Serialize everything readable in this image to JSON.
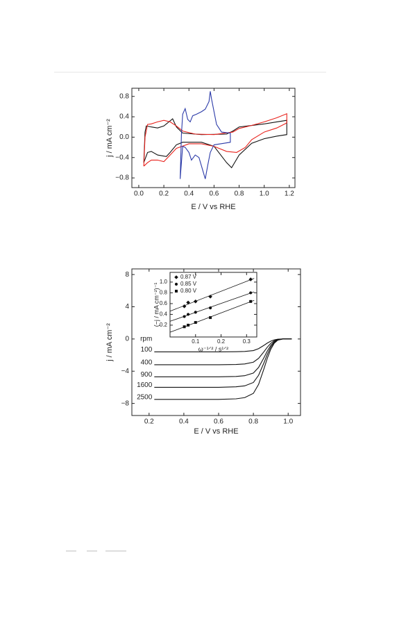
{
  "chart_data": [
    {
      "type": "line",
      "xlabel": "E / V  vs  RHE",
      "ylabel": "j / mA cm⁻²",
      "xlim": [
        -0.055,
        1.245
      ],
      "ylim": [
        -0.99,
        0.96
      ],
      "xticks": [
        {
          "value": 0,
          "label": "0.0"
        },
        {
          "value": 0.2,
          "label": "0.2"
        },
        {
          "value": 0.4,
          "label": "0.4"
        },
        {
          "value": 0.6,
          "label": "0.6"
        },
        {
          "value": 0.8,
          "label": "0.8"
        },
        {
          "value": 1.0,
          "label": "1.0"
        },
        {
          "value": 1.2,
          "label": "1.2"
        }
      ],
      "yticks": [
        {
          "value": -0.8,
          "label": "−0.8"
        },
        {
          "value": -0.4,
          "label": "−0.4"
        },
        {
          "value": 0,
          "label": "0.0"
        },
        {
          "value": 0.4,
          "label": "0.4"
        },
        {
          "value": 0.8,
          "label": "0.8"
        }
      ],
      "series": [
        {
          "color": "#111111",
          "x": [
            0.04,
            0.05,
            0.06,
            0.1,
            0.15,
            0.2,
            0.25,
            0.27,
            0.3,
            0.35,
            0.5,
            0.7,
            0.75,
            0.8,
            0.9,
            1.0,
            1.1,
            1.18,
            1.18,
            1.1,
            1.0,
            0.9,
            0.8,
            0.74,
            0.7,
            0.6,
            0.5,
            0.35,
            0.3,
            0.25,
            0.22,
            0.15,
            0.1,
            0.07,
            0.04
          ],
          "values": [
            -0.5,
            0.1,
            0.22,
            0.2,
            0.18,
            0.22,
            0.32,
            0.36,
            0.2,
            0.08,
            0.05,
            0.06,
            0.12,
            0.2,
            0.23,
            0.26,
            0.3,
            0.33,
            0.05,
            0.02,
            -0.03,
            -0.12,
            -0.35,
            -0.6,
            -0.5,
            -0.18,
            -0.1,
            -0.1,
            -0.15,
            -0.3,
            -0.38,
            -0.35,
            -0.28,
            -0.3,
            -0.5
          ]
        },
        {
          "color": "#e8211b",
          "x": [
            0.04,
            0.05,
            0.07,
            0.1,
            0.15,
            0.2,
            0.25,
            0.3,
            0.35,
            0.45,
            0.6,
            0.75,
            0.8,
            0.9,
            1.0,
            1.1,
            1.18,
            1.18,
            1.1,
            1.0,
            0.9,
            0.85,
            0.78,
            0.7,
            0.6,
            0.5,
            0.4,
            0.3,
            0.25,
            0.2,
            0.15,
            0.1,
            0.07,
            0.04
          ],
          "values": [
            -0.57,
            0.0,
            0.25,
            0.26,
            0.3,
            0.33,
            0.3,
            0.22,
            0.12,
            0.06,
            0.05,
            0.1,
            0.17,
            0.23,
            0.3,
            0.38,
            0.46,
            0.28,
            0.18,
            0.1,
            -0.05,
            -0.2,
            -0.3,
            -0.28,
            -0.18,
            -0.13,
            -0.13,
            -0.22,
            -0.35,
            -0.48,
            -0.45,
            -0.45,
            -0.5,
            -0.57
          ]
        },
        {
          "color": "#2b3aa8",
          "x": [
            0.33,
            0.34,
            0.35,
            0.37,
            0.39,
            0.41,
            0.43,
            0.46,
            0.5,
            0.53,
            0.56,
            0.57,
            0.58,
            0.6,
            0.62,
            0.66,
            0.73,
            0.73,
            0.68,
            0.6,
            0.57,
            0.55,
            0.53,
            0.51,
            0.48,
            0.45,
            0.42,
            0.4,
            0.37,
            0.35,
            0.33
          ],
          "values": [
            -0.82,
            0.05,
            0.45,
            0.56,
            0.35,
            0.3,
            0.42,
            0.45,
            0.5,
            0.55,
            0.7,
            0.9,
            0.75,
            0.5,
            0.25,
            0.1,
            0.08,
            -0.1,
            -0.12,
            -0.15,
            -0.3,
            -0.55,
            -0.82,
            -0.65,
            -0.4,
            -0.35,
            -0.45,
            -0.3,
            -0.2,
            -0.18,
            -0.82
          ]
        }
      ]
    },
    {
      "type": "line",
      "xlabel": "E / V  vs  RHE",
      "ylabel": "j / mA cm⁻²",
      "annotation": "rpm",
      "xlim": [
        0.101,
        1.071
      ],
      "ylim": [
        -9.5,
        8.7
      ],
      "xticks": [
        {
          "value": 0.2,
          "label": "0.2"
        },
        {
          "value": 0.4,
          "label": "0.4"
        },
        {
          "value": 0.6,
          "label": "0.6"
        },
        {
          "value": 0.8,
          "label": "0.8"
        },
        {
          "value": 1.0,
          "label": "1.0"
        }
      ],
      "yticks": [
        {
          "value": -8,
          "label": "−8"
        },
        {
          "value": -4,
          "label": "−4"
        },
        0,
        4,
        8
      ],
      "x": [
        0.23,
        0.4,
        0.6,
        0.7,
        0.75,
        0.8,
        0.83,
        0.86,
        0.88,
        0.9,
        0.92,
        0.94,
        0.97,
        1.02
      ],
      "series": [
        {
          "name": "100",
          "color": "#111111",
          "values": [
            -1.6,
            -1.6,
            -1.6,
            -1.58,
            -1.55,
            -1.44,
            -1.2,
            -0.8,
            -0.51,
            -0.27,
            -0.11,
            -0.03,
            0,
            0
          ]
        },
        {
          "name": "400",
          "color": "#111111",
          "values": [
            -3.2,
            -3.2,
            -3.2,
            -3.17,
            -3.1,
            -2.88,
            -2.4,
            -1.6,
            -1.02,
            -0.54,
            -0.22,
            -0.06,
            0,
            0
          ]
        },
        {
          "name": "900",
          "color": "#111111",
          "values": [
            -4.7,
            -4.7,
            -4.7,
            -4.65,
            -4.56,
            -4.23,
            -3.53,
            -2.35,
            -1.5,
            -0.8,
            -0.33,
            -0.09,
            0,
            0
          ]
        },
        {
          "name": "1600",
          "color": "#111111",
          "values": [
            -6.0,
            -6.0,
            -6.0,
            -5.94,
            -5.82,
            -5.4,
            -4.5,
            -3.0,
            -1.92,
            -1.02,
            -0.42,
            -0.12,
            0,
            0
          ]
        },
        {
          "name": "2500",
          "color": "#111111",
          "values": [
            -7.5,
            -7.5,
            -7.5,
            -7.43,
            -7.28,
            -6.75,
            -5.63,
            -3.75,
            -2.4,
            -1.28,
            -0.53,
            -0.15,
            0,
            0
          ]
        }
      ]
    },
    {
      "type": "scatter",
      "xlabel": "ω⁻¹ᐟ² / s¹ᐟ²",
      "ylabel": "(−j / mA cm⁻²)⁻¹",
      "fit_lines": true,
      "xlim": [
        0,
        0.34
      ],
      "ylim": [
        -0.02,
        1.18
      ],
      "xticks": [
        0.1,
        0.2,
        0.3
      ],
      "yticks": [
        0.2,
        0.4,
        0.6,
        0.8,
        {
          "value": 1.0,
          "label": "1.0"
        }
      ],
      "series": [
        {
          "name": "0.87 V",
          "marker": "diamond",
          "color": "#111111",
          "x": [
            0.056,
            0.071,
            0.1,
            0.158,
            0.316
          ],
          "values": [
            0.55,
            0.62,
            0.64,
            0.73,
            1.05
          ]
        },
        {
          "name": "0.85 V",
          "marker": "circle",
          "color": "#111111",
          "x": [
            0.056,
            0.071,
            0.1,
            0.158,
            0.316
          ],
          "values": [
            0.36,
            0.4,
            0.44,
            0.52,
            0.8
          ]
        },
        {
          "name": "0.80 V",
          "marker": "square",
          "color": "#111111",
          "x": [
            0.056,
            0.071,
            0.1,
            0.158,
            0.316
          ],
          "values": [
            0.17,
            0.2,
            0.25,
            0.34,
            0.64
          ]
        }
      ]
    }
  ]
}
